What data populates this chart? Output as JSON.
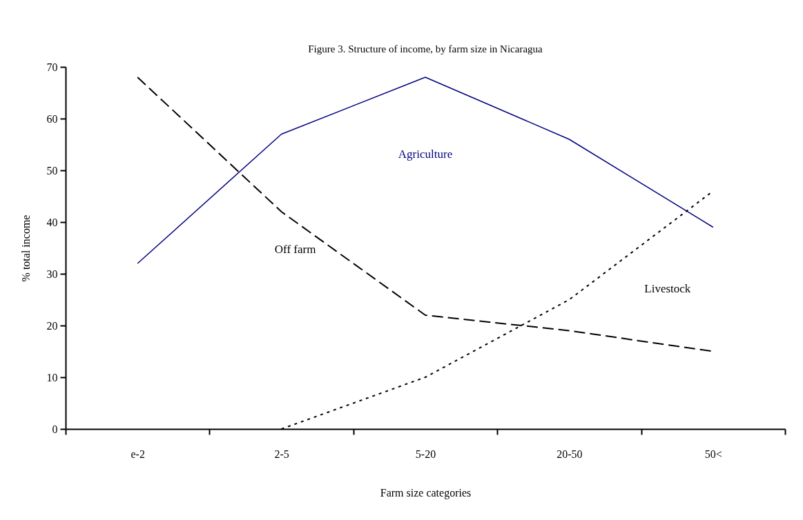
{
  "chart_data": {
    "type": "line",
    "title": "Figure 3.  Structure of income, by farm size in Nicaragua",
    "xlabel": "Farm size categories",
    "ylabel": "% total income",
    "categories": [
      "e-2",
      "2-5",
      "5-20",
      "20-50",
      "50<"
    ],
    "series": [
      {
        "name": "Agriculture",
        "color": "#000080",
        "line_style": "solid",
        "values": [
          32,
          57,
          68,
          56,
          39
        ]
      },
      {
        "name": "Off farm",
        "color": "#000000",
        "line_style": "dashed",
        "values": [
          68,
          42,
          22,
          19,
          15
        ]
      },
      {
        "name": "Livestock",
        "color": "#000000",
        "line_style": "dotted",
        "values": [
          null,
          0,
          10,
          25,
          46
        ]
      }
    ],
    "ylim": [
      0,
      70
    ],
    "yticks": [
      0,
      10,
      20,
      30,
      40,
      50,
      60,
      70
    ],
    "grid": false,
    "legend": false,
    "marker": "none"
  }
}
